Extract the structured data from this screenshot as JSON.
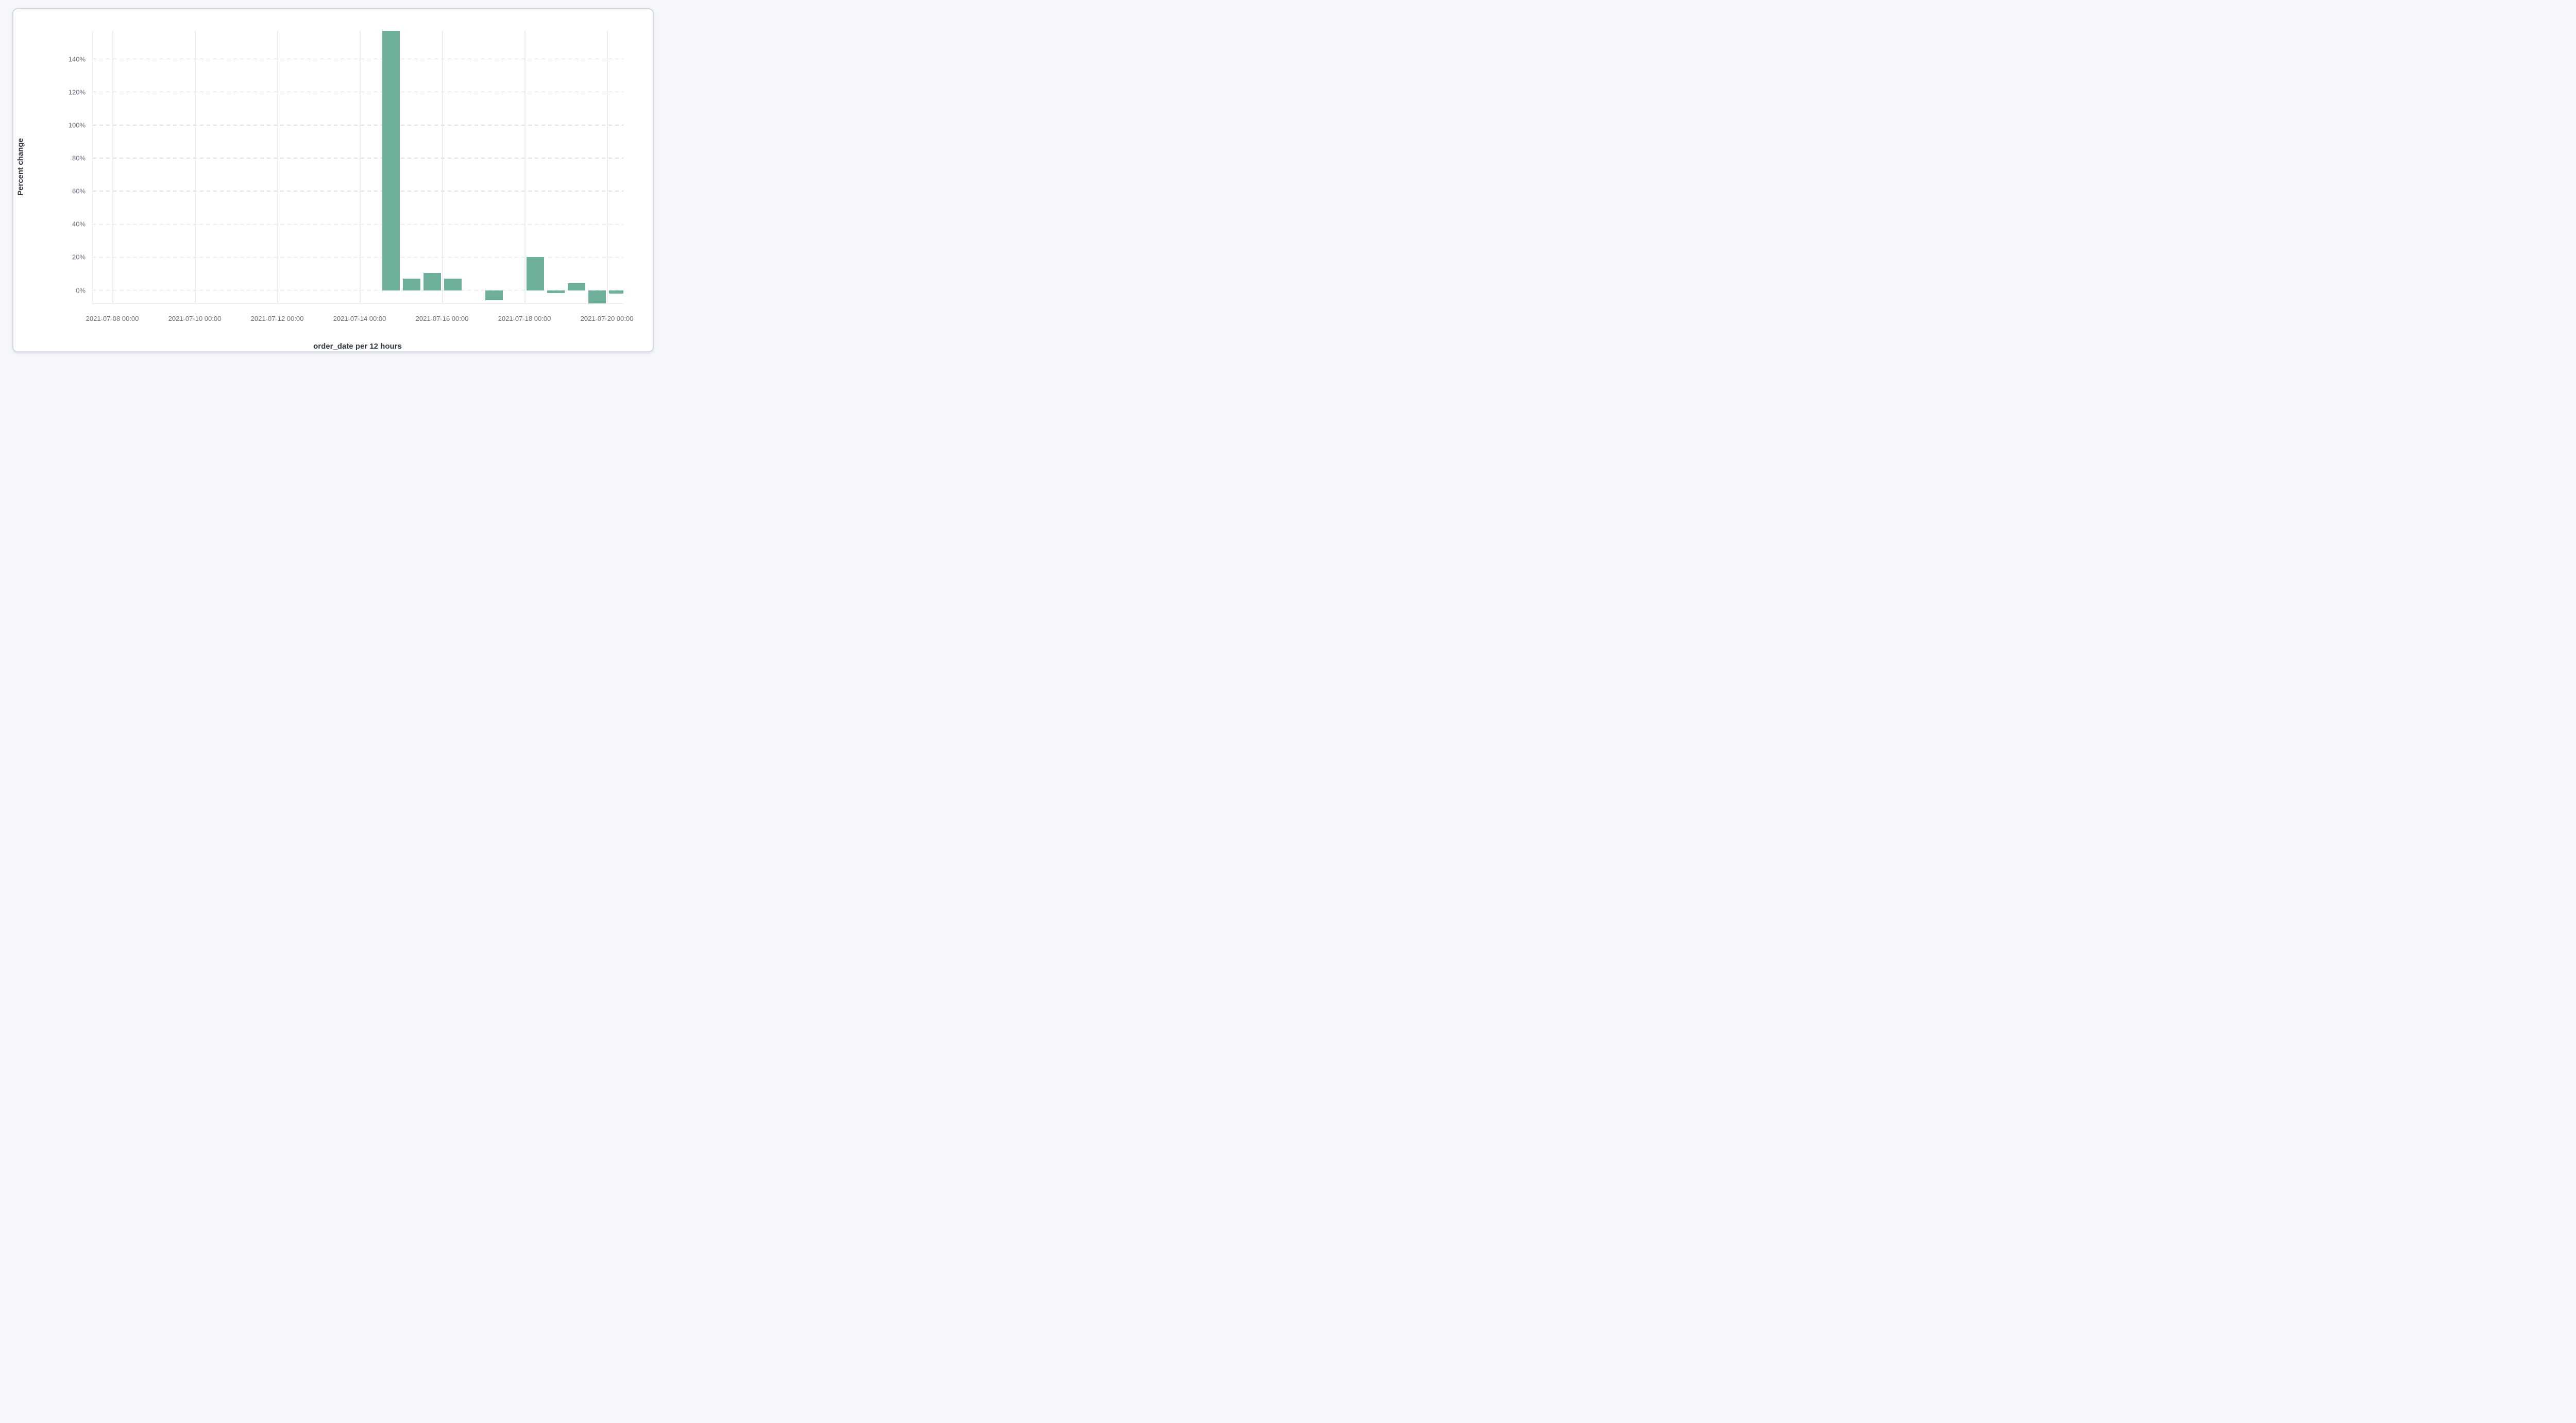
{
  "panel": {
    "background": "#ffffff",
    "border_color": "#d3dae6",
    "page_background": "#f5f7fa"
  },
  "chart_data": {
    "type": "bar",
    "xlabel": "order_date per 12 hours",
    "ylabel": "Percent change",
    "bar_color": "#6eb09b",
    "bucket_hours": 12,
    "x_tick_labels": [
      "2021-07-08 00:00",
      "2021-07-10 00:00",
      "2021-07-12 00:00",
      "2021-07-14 00:00",
      "2021-07-16 00:00",
      "2021-07-18 00:00",
      "2021-07-20 00:00"
    ],
    "y_ticks": [
      0,
      20,
      40,
      60,
      80,
      100,
      120,
      140
    ],
    "y_tick_suffix": "%",
    "ylim": [
      -7.9,
      157
    ],
    "x_domain": [
      "2021-07-07 12:00",
      "2021-07-20 09:00"
    ],
    "grid": {
      "horizontal": "dashed",
      "vertical": "solid"
    },
    "legend": "none",
    "bars": [
      {
        "start": "2021-07-14 12:00",
        "value": 157
      },
      {
        "start": "2021-07-15 00:00",
        "value": 7
      },
      {
        "start": "2021-07-15 12:00",
        "value": 10.5
      },
      {
        "start": "2021-07-16 00:00",
        "value": 7
      },
      {
        "start": "2021-07-16 12:00",
        "value": 0
      },
      {
        "start": "2021-07-17 00:00",
        "value": -6
      },
      {
        "start": "2021-07-17 12:00",
        "value": 0
      },
      {
        "start": "2021-07-18 00:00",
        "value": 20
      },
      {
        "start": "2021-07-18 12:00",
        "value": -1.6
      },
      {
        "start": "2021-07-19 00:00",
        "value": 4.3
      },
      {
        "start": "2021-07-19 12:00",
        "value": -7.9
      },
      {
        "start": "2021-07-20 00:00",
        "value": -2
      }
    ]
  }
}
